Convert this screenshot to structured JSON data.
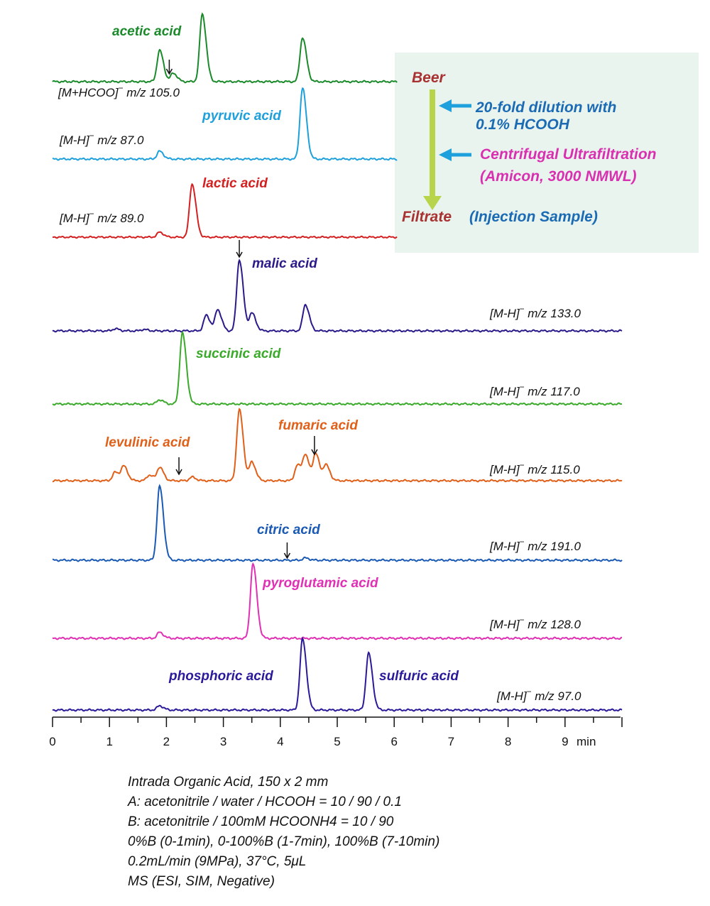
{
  "chart_data": {
    "type": "line",
    "title": "",
    "xlabel": "min",
    "xlim": [
      0,
      10
    ],
    "xticks": [
      0,
      1,
      2,
      3,
      4,
      5,
      6,
      7,
      8,
      9
    ],
    "series": [
      {
        "name": "acetic acid",
        "ion": "[M+HCOO]",
        "mz": "m/z 105.0",
        "color": "#1a8a2a",
        "peaks": [
          [
            1.88,
            0.44
          ],
          [
            2.12,
            0.12
          ],
          [
            2.63,
            0.95
          ],
          [
            4.39,
            0.62
          ]
        ],
        "marker_rt": 2.05
      },
      {
        "name": "pyruvic acid",
        "ion": "[M-H]",
        "mz": "m/z 87.0",
        "color": "#1ea0dc",
        "peaks": [
          [
            1.88,
            0.11
          ],
          [
            4.39,
            1.0
          ]
        ]
      },
      {
        "name": "lactic acid",
        "ion": "[M-H]",
        "mz": "m/z 89.0",
        "color": "#d42020",
        "peaks": [
          [
            1.88,
            0.08
          ],
          [
            2.45,
            0.85
          ]
        ]
      },
      {
        "name": "malic acid",
        "ion": "[M-H]",
        "mz": "m/z 133.0",
        "color": "#2a1a8a",
        "peaks": [
          [
            1.1,
            0.03
          ],
          [
            1.6,
            0.02
          ],
          [
            2.7,
            0.22
          ],
          [
            2.9,
            0.3
          ],
          [
            3.28,
            1.0
          ],
          [
            3.5,
            0.25
          ],
          [
            4.44,
            0.37
          ]
        ],
        "marker_rt": 3.28
      },
      {
        "name": "succinic acid",
        "ion": "[M-H]",
        "mz": "m/z 117.0",
        "color": "#3aaa2a",
        "peaks": [
          [
            1.88,
            0.06
          ],
          [
            2.28,
            1.0
          ]
        ]
      },
      {
        "name": "levulinic acid",
        "ion": "[M-H]",
        "mz": "m/z 115.0",
        "color": "#e0601a",
        "peaks": [
          [
            1.1,
            0.12
          ],
          [
            1.25,
            0.2
          ],
          [
            1.7,
            0.08
          ],
          [
            1.88,
            0.19
          ],
          [
            2.45,
            0.05
          ],
          [
            3.28,
            1.0
          ],
          [
            3.5,
            0.26
          ],
          [
            4.3,
            0.22
          ],
          [
            4.44,
            0.35
          ],
          [
            4.62,
            0.38
          ],
          [
            4.8,
            0.22
          ]
        ],
        "marker_rt": 2.22
      },
      {
        "name": "fumaric acid",
        "marker_rt": 4.6,
        "label_only": true
      },
      {
        "name": "citric acid",
        "ion": "[M-H]",
        "mz": "m/z 191.0",
        "color": "#1a5ab4",
        "peaks": [
          [
            1.88,
            1.0
          ],
          [
            4.44,
            0.03
          ]
        ],
        "marker_rt": 4.12
      },
      {
        "name": "pyroglutamic acid",
        "ion": "[M-H]",
        "mz": "m/z 128.0",
        "color": "#e030b4",
        "peaks": [
          [
            1.88,
            0.08
          ],
          [
            3.52,
            1.0
          ]
        ]
      },
      {
        "name": "phosphoric acid",
        "ion": "[M-H]",
        "mz": "m/z 97.0",
        "color": "#2a1a9a",
        "peaks": [
          [
            1.88,
            0.06
          ],
          [
            4.39,
            1.0
          ]
        ]
      },
      {
        "name": "sulfuric acid",
        "label_only": true,
        "peaks": [
          [
            5.55,
            0.8
          ]
        ]
      }
    ],
    "flow": {
      "start": "Beer",
      "step1_line1": "20-fold dilution with",
      "step1_line2": "0.1% HCOOH",
      "step2_line1": "Centrifugal Ultrafiltration",
      "step2_line2": "(Amicon, 3000 NMWL)",
      "end_a": "Filtrate",
      "end_b": "(Injection Sample)"
    },
    "conditions": [
      "Intrada Organic Acid, 150 x 2 mm",
      "A: acetonitrile / water / HCOOH = 10 / 90 / 0.1",
      "B: acetonitrile / 100mM HCOONH4 = 10 / 90",
      "0%B (0-1min), 0-100%B (1-7min), 100%B (7-10min)",
      "0.2mL/min (9MPa), 37°C,  5μL",
      "MS (ESI, SIM, Negative)"
    ]
  },
  "colors": {
    "flow_box": "#eaf4ee",
    "flow_arrow": "#b8d44a",
    "flow_start": "#a83232",
    "flow_step": "#1a6ab4",
    "flow_step2": "#d830b0",
    "pointer_arrow": "#1ea0dc"
  }
}
